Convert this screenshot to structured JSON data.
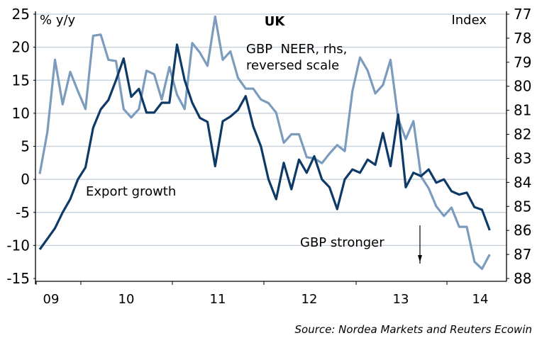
{
  "chart_data": {
    "type": "line",
    "title": "UK",
    "ylabel_left": "% y/y",
    "ylabel_right": "Index",
    "ylim_left": [
      -15,
      25
    ],
    "yticks_left": [
      25,
      20,
      15,
      10,
      5,
      0,
      -5,
      -10,
      -15
    ],
    "ylim_right": [
      77,
      88
    ],
    "right_axis_reversed": true,
    "yticks_right": [
      77,
      78,
      79,
      80,
      81,
      82,
      83,
      84,
      85,
      86,
      87,
      88
    ],
    "x_tick_labels": [
      "09",
      "10",
      "11",
      "12",
      "13",
      "14"
    ],
    "grid": true,
    "x_start": "2009-07",
    "x_frequency": "monthly",
    "series": [
      {
        "name": "Export growth",
        "axis": "left",
        "color": "#0d3a66",
        "values": [
          -10.6,
          -9.0,
          -7.4,
          -5.0,
          -3.0,
          0.0,
          1.8,
          7.8,
          10.6,
          12.0,
          15.0,
          18.3,
          12.5,
          13.7,
          10.1,
          10.1,
          11.6,
          11.6,
          20.4,
          15.0,
          11.6,
          9.3,
          8.7,
          2.0,
          8.8,
          9.5,
          10.5,
          12.6,
          8.0,
          5.0,
          0.0,
          -3.0,
          2.5,
          -1.5,
          3.0,
          1.0,
          3.5,
          0.0,
          -1.2,
          -4.5,
          0.0,
          1.5,
          1.0,
          3.0,
          2.2,
          7.0,
          2.0,
          9.8,
          -1.2,
          1.0,
          0.5,
          1.5,
          -0.5,
          0.0,
          -1.8,
          -2.3,
          -2.0,
          -4.2,
          -4.6,
          -7.7
        ]
      },
      {
        "name": "GBP NEER, rhs, reversed scale",
        "axis": "right",
        "color": "#7b9cbd",
        "values": [
          83.65,
          81.9,
          78.9,
          80.75,
          79.4,
          80.2,
          80.95,
          77.9,
          77.85,
          78.9,
          78.95,
          80.95,
          81.3,
          80.95,
          79.35,
          79.5,
          80.55,
          79.2,
          80.35,
          80.95,
          78.2,
          78.6,
          79.15,
          77.1,
          78.9,
          78.55,
          79.65,
          80.1,
          80.1,
          80.55,
          80.7,
          81.1,
          82.35,
          82.0,
          82.0,
          82.95,
          83.0,
          83.2,
          82.8,
          82.45,
          82.7,
          80.2,
          78.8,
          79.35,
          80.3,
          79.95,
          78.9,
          81.35,
          82.2,
          81.45,
          83.75,
          84.25,
          85.0,
          85.4,
          85.05,
          85.85,
          85.85,
          87.3,
          87.6,
          87.0
        ]
      }
    ],
    "annotations": {
      "export_label": "Export growth",
      "neer_label_line1": "GBP  NEER, rhs,",
      "neer_label_line2": "reversed scale",
      "stronger_label": "GBP stronger",
      "arrow": "down-arrow"
    },
    "source": "Source: Nordea Markets and Reuters Ecowin"
  }
}
